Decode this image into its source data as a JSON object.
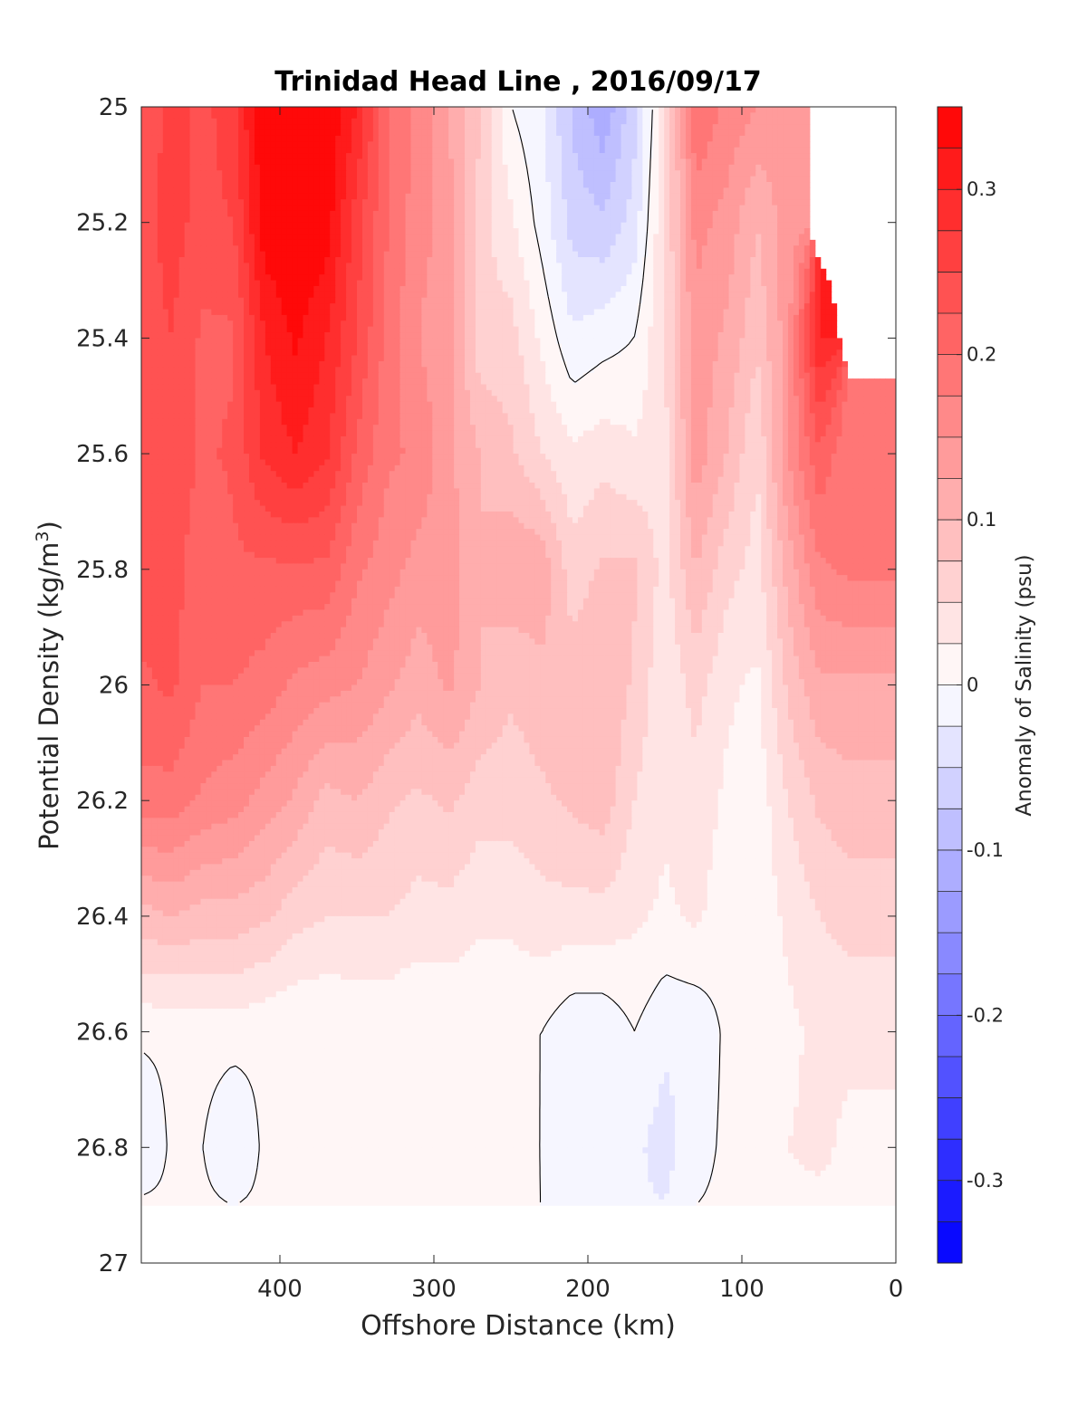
{
  "chart_data": {
    "type": "heatmap",
    "subtype": "filled-contour",
    "title": "Trinidad Head Line , 2016/09/17",
    "xlabel": "Offshore Distance (km)",
    "ylabel_main": "Potential Density (kg/m",
    "ylabel_sup": "3",
    "ylabel_close": ")",
    "colorbar_label": "Anomaly of Salinity (psu)",
    "xlim": [
      490,
      0
    ],
    "x_reversed": true,
    "ylim": [
      25,
      27
    ],
    "y_reversed": true,
    "x_ticks": [
      400,
      300,
      200,
      100,
      0
    ],
    "x_tick_labels": [
      "400",
      "300",
      "200",
      "100",
      "0"
    ],
    "y_ticks": [
      25,
      25.2,
      25.4,
      25.6,
      25.8,
      26,
      26.2,
      26.4,
      26.6,
      26.8,
      27
    ],
    "y_tick_labels": [
      "25",
      "25.2",
      "25.4",
      "25.6",
      "25.8",
      "26",
      "26.2",
      "26.4",
      "26.6",
      "26.8",
      "27"
    ],
    "colorbar": {
      "range": [
        -0.35,
        0.35
      ],
      "step": 0.025,
      "ticks": [
        0.3,
        0.2,
        0.1,
        0,
        -0.1,
        -0.2,
        -0.3
      ],
      "tick_labels": [
        "0.3",
        "0.2",
        "0.1",
        "0",
        "-0.1",
        "-0.2",
        "-0.3"
      ],
      "positive_color": "#ff0000",
      "negative_color": "#0000ff",
      "zero_color": "#ffffff"
    },
    "grid": false,
    "zero_contour_color": "#000000",
    "x": [
      490,
      470,
      450,
      430,
      410,
      390,
      370,
      350,
      330,
      310,
      290,
      270,
      250,
      230,
      210,
      190,
      170,
      150,
      130,
      110,
      90,
      70,
      50,
      30
    ],
    "y": [
      25.0,
      25.2,
      25.4,
      25.6,
      25.8,
      26.0,
      26.2,
      26.4,
      26.6,
      26.8,
      26.9
    ],
    "z": [
      [
        0.23,
        0.26,
        0.24,
        0.27,
        0.35,
        0.35,
        0.35,
        0.3,
        0.2,
        0.17,
        0.12,
        0.08,
        0.0,
        -0.02,
        -0.08,
        -0.12,
        -0.06,
        0.04,
        0.2,
        0.17,
        0.15,
        0.13,
        null,
        null
      ],
      [
        0.24,
        0.26,
        0.24,
        0.25,
        0.34,
        0.35,
        0.34,
        0.26,
        0.2,
        0.16,
        0.14,
        0.06,
        0.03,
        -0.01,
        -0.06,
        -0.07,
        -0.04,
        0.05,
        0.16,
        0.14,
        0.1,
        0.14,
        null,
        null
      ],
      [
        0.24,
        0.25,
        0.22,
        0.22,
        0.3,
        0.33,
        0.3,
        0.25,
        0.19,
        0.15,
        0.13,
        0.06,
        0.06,
        0.02,
        -0.02,
        -0.01,
        0.0,
        0.05,
        0.14,
        0.12,
        0.08,
        0.14,
        0.3,
        null
      ],
      [
        0.24,
        0.25,
        0.22,
        0.23,
        0.28,
        0.3,
        0.28,
        0.22,
        0.18,
        0.17,
        0.13,
        0.1,
        0.08,
        0.05,
        0.03,
        0.04,
        0.03,
        0.04,
        0.14,
        0.1,
        0.05,
        0.15,
        0.22,
        0.18
      ],
      [
        0.24,
        0.24,
        0.2,
        0.22,
        0.22,
        0.22,
        0.22,
        0.18,
        0.16,
        0.14,
        0.14,
        0.1,
        0.12,
        0.12,
        0.06,
        0.08,
        0.08,
        0.04,
        0.1,
        0.06,
        0.04,
        0.11,
        0.17,
        0.18
      ],
      [
        0.22,
        0.23,
        0.2,
        0.2,
        0.19,
        0.17,
        0.16,
        0.15,
        0.13,
        0.11,
        0.13,
        0.1,
        0.08,
        0.09,
        0.09,
        0.1,
        0.07,
        0.03,
        0.06,
        0.03,
        0.02,
        0.08,
        0.12,
        0.12
      ],
      [
        0.19,
        0.19,
        0.17,
        0.16,
        0.14,
        0.12,
        0.09,
        0.1,
        0.08,
        0.07,
        0.08,
        0.06,
        0.06,
        0.07,
        0.08,
        0.09,
        0.05,
        0.03,
        0.04,
        0.02,
        0.01,
        0.05,
        0.08,
        0.09
      ],
      [
        0.09,
        0.1,
        0.09,
        0.09,
        0.08,
        0.06,
        0.05,
        0.05,
        0.05,
        0.04,
        0.04,
        0.03,
        0.03,
        0.04,
        0.04,
        0.04,
        0.03,
        0.02,
        0.03,
        0.01,
        0.01,
        0.03,
        0.05,
        0.06
      ],
      [
        0.005,
        0.005,
        0.01,
        0.01,
        0.005,
        0.0,
        0.0,
        0.005,
        0.005,
        0.0,
        0.005,
        0.005,
        0.005,
        0.0,
        -0.02,
        -0.02,
        0.0,
        -0.02,
        -0.02,
        0.005,
        0.01,
        0.02,
        0.03,
        0.03
      ],
      [
        -0.025,
        0.005,
        0.0,
        -0.025,
        0.005,
        0.005,
        0.005,
        0.005,
        0.005,
        0.005,
        0.005,
        0.005,
        0.005,
        0.0,
        -0.025,
        -0.015,
        -0.02,
        -0.035,
        -0.01,
        0.005,
        0.01,
        0.025,
        0.03,
        0.02
      ],
      [
        0.005,
        0.005,
        0.005,
        0.0,
        0.005,
        0.005,
        0.005,
        0.005,
        0.005,
        0.005,
        0.005,
        0.005,
        0.005,
        0.0,
        -0.015,
        -0.01,
        -0.02,
        -0.025,
        0.0,
        0.005,
        0.01,
        0.02,
        0.02,
        0.02
      ]
    ]
  }
}
